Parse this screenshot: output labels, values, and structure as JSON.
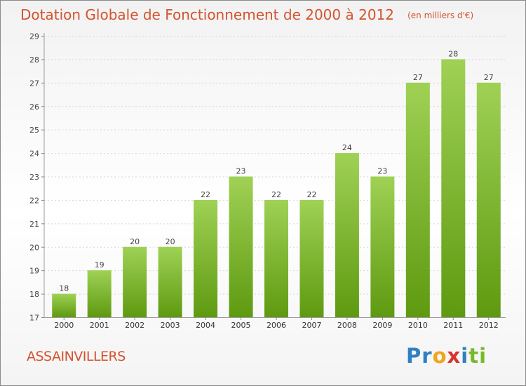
{
  "title": "Dotation Globale de Fonctionnement de 2000 à 2012",
  "unit_note": "(en milliers d'€)",
  "commune": "ASSAINVILLERS",
  "logo": {
    "text": "Proxiti",
    "letters": [
      {
        "ch": "P",
        "color": "#2f7fc1"
      },
      {
        "ch": "r",
        "color": "#2f7fc1"
      },
      {
        "ch": "o",
        "color": "#f0a51a"
      },
      {
        "ch": "x",
        "color": "#d8342c"
      },
      {
        "ch": "i",
        "color": "#2f7fc1"
      },
      {
        "ch": "t",
        "color": "#7ab829"
      },
      {
        "ch": "i",
        "color": "#7ab829"
      }
    ]
  },
  "colors": {
    "accent": "#d4532d",
    "bar_top": "#9fd155",
    "bar_bottom": "#5e9a10"
  },
  "chart_data": {
    "type": "bar",
    "title": "Dotation Globale de Fonctionnement de 2000 à 2012",
    "subtitle": "(en milliers d'€)",
    "categories": [
      "2000",
      "2001",
      "2002",
      "2003",
      "2004",
      "2005",
      "2006",
      "2007",
      "2008",
      "2009",
      "2010",
      "2011",
      "2012"
    ],
    "values": [
      18,
      19,
      20,
      20,
      22,
      23,
      22,
      22,
      24,
      23,
      27,
      28,
      27
    ],
    "xlabel": "",
    "ylabel": "",
    "ylim": [
      17,
      29
    ],
    "yticks": [
      17,
      18,
      19,
      20,
      21,
      22,
      23,
      24,
      25,
      26,
      27,
      28,
      29
    ],
    "grid": true,
    "legend": "none"
  }
}
